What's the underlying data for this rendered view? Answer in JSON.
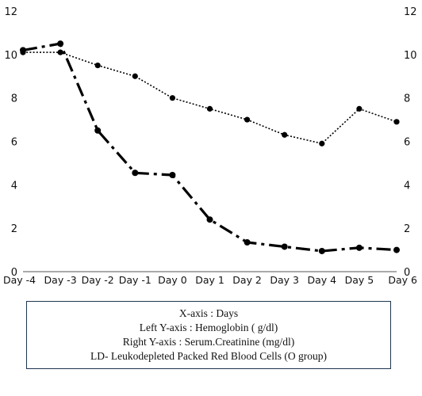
{
  "chart_data": {
    "type": "line",
    "categories": [
      "Day -4",
      "Day -3",
      "Day -2",
      "Day -1",
      "Day 0",
      "Day 1",
      "Day 2",
      "Day 3",
      "Day 4",
      "Day 5",
      "Day 6"
    ],
    "ylim_left": [
      0,
      12
    ],
    "ylim_right": [
      0,
      12
    ],
    "yticks_left": [
      "0",
      "2",
      "4",
      "6",
      "8",
      "10",
      "12"
    ],
    "yticks_right": [
      "0",
      "2",
      "4",
      "6",
      "8",
      "10",
      "12"
    ],
    "grid": false,
    "series": [
      {
        "axis": "left",
        "style": "dotted",
        "values": [
          10.1,
          10.1,
          9.5,
          9.0,
          8.0,
          7.5,
          7.0,
          6.3,
          5.9,
          7.5,
          6.9
        ]
      },
      {
        "axis": "right",
        "style": "dash-dot",
        "values": [
          10.2,
          10.5,
          6.5,
          4.55,
          4.45,
          2.4,
          1.35,
          1.15,
          0.95,
          1.1,
          1.0
        ]
      }
    ],
    "legend_position": "bottom",
    "legend_box": {
      "lines": [
        "X-axis : Days",
        "Left Y-axis : Hemoglobin ( g/dl)",
        "Right Y-axis : Serum.Creatinine (mg/dl)",
        "LD- Leukodepleted Packed Red Blood Cells (O group)"
      ]
    }
  }
}
